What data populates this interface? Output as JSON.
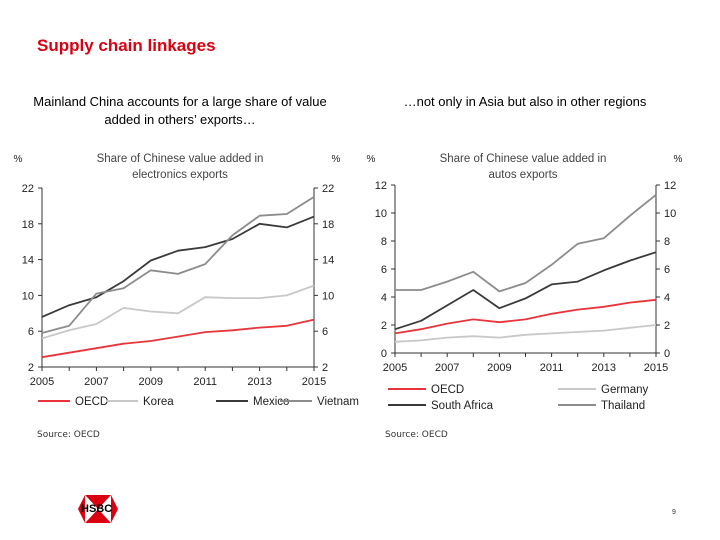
{
  "slide": {
    "title": "Supply chain linkages",
    "left_caption": "Mainland China accounts for a large share of value added in others’ exports…",
    "right_caption": "…not only in Asia but also in other regions",
    "left_source": "Source: OECD",
    "right_source": "Source: OECD",
    "logo_text": "HSBC",
    "page_number": "9",
    "brand_color": "#db0011"
  },
  "chart_data": [
    {
      "type": "line",
      "title": "Share of Chinese value added in electronics exports",
      "ylabel_left": "%",
      "ylabel_right": "%",
      "x": [
        2005,
        2006,
        2007,
        2008,
        2009,
        2010,
        2011,
        2012,
        2013,
        2014,
        2015
      ],
      "xticks": [
        "2005",
        "2007",
        "2009",
        "2011",
        "2013",
        "2015"
      ],
      "ylim": [
        2,
        22
      ],
      "yticks": [
        "22",
        "18",
        "14",
        "10",
        "6",
        "2"
      ],
      "grid": false,
      "legend_position": "bottom",
      "series": [
        {
          "name": "OECD",
          "color": "#e8343b",
          "values": [
            3.1,
            3.6,
            4.1,
            4.6,
            4.9,
            5.4,
            5.9,
            6.1,
            6.4,
            6.6,
            7.3
          ]
        },
        {
          "name": "Korea",
          "color": "#c8c8c8",
          "values": [
            5.2,
            6.1,
            6.8,
            8.6,
            8.2,
            8.0,
            9.8,
            9.7,
            9.7,
            10.0,
            11.1
          ]
        },
        {
          "name": "Mexico",
          "color": "#3a3a3a",
          "values": [
            7.6,
            8.9,
            9.8,
            11.6,
            13.9,
            15.0,
            15.4,
            16.3,
            18.0,
            17.6,
            18.8
          ]
        },
        {
          "name": "Vietnam",
          "color": "#8c8c8c",
          "values": [
            5.8,
            6.6,
            10.2,
            10.8,
            12.8,
            12.4,
            13.5,
            16.7,
            18.9,
            19.1,
            21.0
          ]
        }
      ]
    },
    {
      "type": "line",
      "title": "Share of Chinese value added in autos exports",
      "ylabel_left": "%",
      "ylabel_right": "%",
      "x": [
        2005,
        2006,
        2007,
        2008,
        2009,
        2010,
        2011,
        2012,
        2013,
        2014,
        2015
      ],
      "xticks": [
        "2005",
        "2007",
        "2009",
        "2011",
        "2013",
        "2015"
      ],
      "ylim": [
        0,
        12
      ],
      "yticks": [
        "12",
        "10",
        "8",
        "6",
        "4",
        "2",
        "0"
      ],
      "grid": false,
      "legend_position": "bottom",
      "series": [
        {
          "name": "OECD",
          "color": "#e8343b",
          "values": [
            1.4,
            1.7,
            2.1,
            2.4,
            2.2,
            2.4,
            2.8,
            3.1,
            3.3,
            3.6,
            3.8
          ]
        },
        {
          "name": "Germany",
          "color": "#c8c8c8",
          "values": [
            0.8,
            0.9,
            1.1,
            1.2,
            1.1,
            1.3,
            1.4,
            1.5,
            1.6,
            1.8,
            2.0
          ]
        },
        {
          "name": "South Africa",
          "color": "#3a3a3a",
          "values": [
            1.7,
            2.3,
            3.4,
            4.5,
            3.2,
            3.9,
            4.9,
            5.1,
            5.9,
            6.6,
            7.2
          ]
        },
        {
          "name": "Thailand",
          "color": "#8c8c8c",
          "values": [
            4.5,
            4.5,
            5.1,
            5.8,
            4.4,
            5.0,
            6.3,
            7.8,
            8.2,
            9.8,
            11.3
          ]
        }
      ]
    }
  ]
}
